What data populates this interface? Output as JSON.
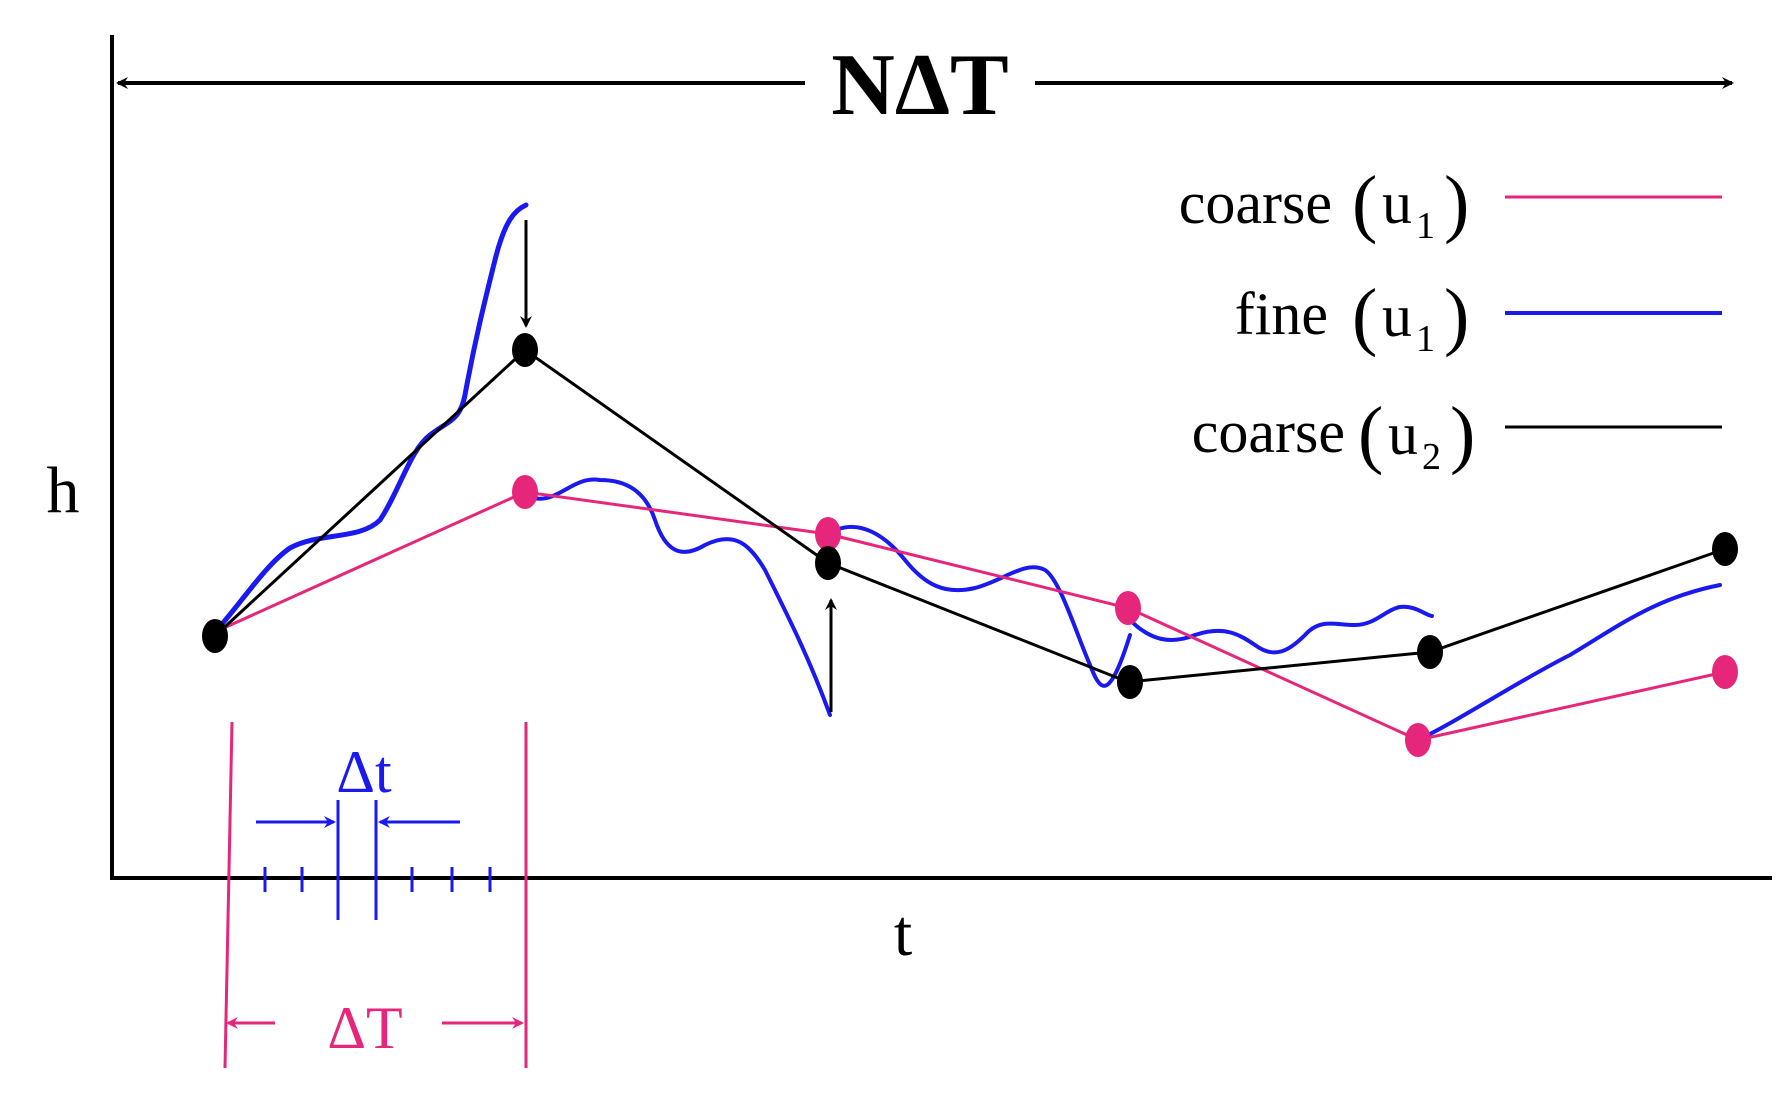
{
  "labels": {
    "total_span": "NΔT",
    "y_axis": "h",
    "x_axis": "t",
    "fine_step": "Δt",
    "coarse_step": "ΔT"
  },
  "legend": [
    {
      "base": "coarse",
      "var": "u",
      "sub": "1",
      "color": "#E6267A"
    },
    {
      "base": "fine",
      "var": "u",
      "sub": "1",
      "color": "#1A1AF0"
    },
    {
      "base": "coarse",
      "var": "u",
      "sub": "2",
      "color": "#000000"
    }
  ],
  "colors": {
    "coarse_u1": "#E6267A",
    "fine_u1": "#1A1AF0",
    "coarse_u2": "#000000",
    "axes": "#000000"
  },
  "icons": [
    "double-headed-arrow",
    "down-arrow",
    "up-arrow",
    "converging-arrows"
  ]
}
